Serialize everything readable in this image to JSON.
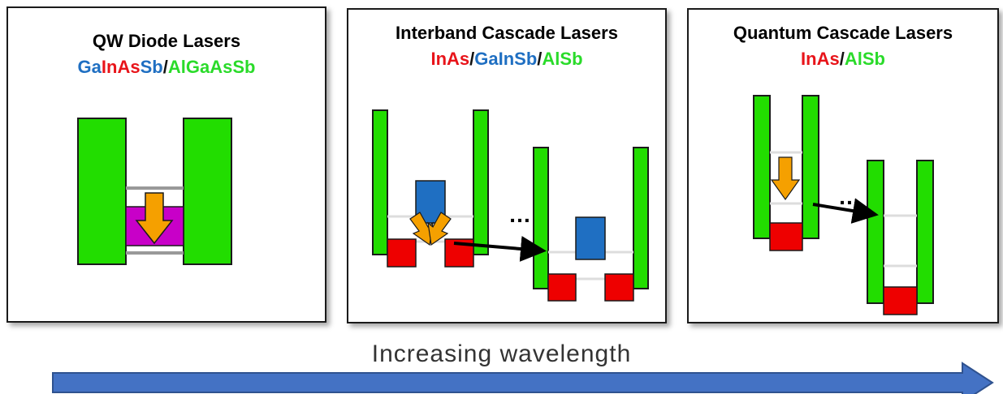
{
  "panels": [
    {
      "title": "QW Diode Lasers",
      "materials": [
        {
          "text": "Ga",
          "color": "#1f6fc2"
        },
        {
          "text": "InAs",
          "color": "#e8141a"
        },
        {
          "text": "Sb",
          "color": "#1f6fc2"
        },
        {
          "text": "/",
          "color": "#111111"
        },
        {
          "text": "AlGaAsSb",
          "color": "#2adb2a"
        }
      ]
    },
    {
      "title": "Interband Cascade Lasers",
      "materials": [
        {
          "text": "InAs",
          "color": "#e8141a"
        },
        {
          "text": "/",
          "color": "#111111"
        },
        {
          "text": "GaInSb",
          "color": "#1f6fc2"
        },
        {
          "text": "/",
          "color": "#111111"
        },
        {
          "text": "AlSb",
          "color": "#2adb2a"
        }
      ],
      "ellipsis": "…"
    },
    {
      "title": "Quantum Cascade Lasers",
      "materials": [
        {
          "text": "InAs",
          "color": "#e8141a"
        },
        {
          "text": "/",
          "color": "#111111"
        },
        {
          "text": "AlSb",
          "color": "#2adb2a"
        }
      ],
      "ellipsis": "…"
    }
  ],
  "arrow_label": "Increasing wavelength",
  "colors": {
    "barrier": "#22dd00",
    "well_electron": "#ee0000",
    "well_hole": "#1f6fc2",
    "qw_active": "#c800c8",
    "transition_arrow": "#f5a000",
    "transfer_arrow": "#000000",
    "wavelength_arrow": "#4472c4"
  }
}
